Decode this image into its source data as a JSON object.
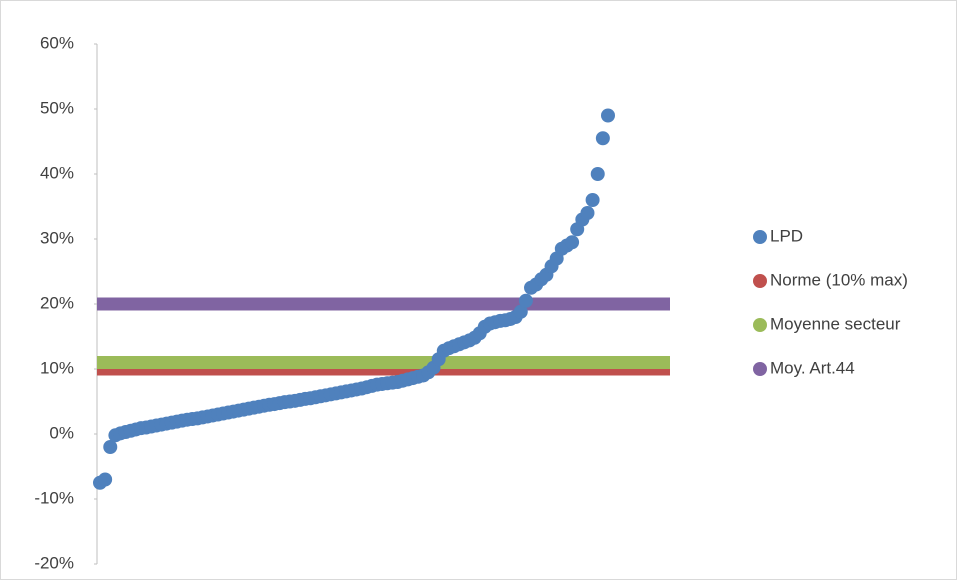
{
  "chart_data": {
    "type": "scatter",
    "ylim": [
      -20,
      60
    ],
    "yticks": [
      {
        "value": -20,
        "label": "-20%"
      },
      {
        "value": -10,
        "label": "-10%"
      },
      {
        "value": 0,
        "label": "0%"
      },
      {
        "value": 10,
        "label": "10%"
      },
      {
        "value": 20,
        "label": "20%"
      },
      {
        "value": 30,
        "label": "30%"
      },
      {
        "value": 40,
        "label": "40%"
      },
      {
        "value": 50,
        "label": "50%"
      },
      {
        "value": 60,
        "label": "60%"
      }
    ],
    "grid": false,
    "legend": "right",
    "series": [
      {
        "name": "LPD",
        "color": "#4f81bd",
        "values": [
          -7.5,
          -7,
          -2,
          -0.2,
          0.1,
          0.3,
          0.5,
          0.7,
          0.9,
          1.0,
          1.15,
          1.3,
          1.45,
          1.6,
          1.75,
          1.9,
          2.05,
          2.2,
          2.3,
          2.4,
          2.55,
          2.7,
          2.85,
          3.0,
          3.15,
          3.3,
          3.45,
          3.6,
          3.75,
          3.9,
          4.05,
          4.2,
          4.35,
          4.5,
          4.6,
          4.75,
          4.9,
          5.0,
          5.1,
          5.25,
          5.4,
          5.5,
          5.65,
          5.8,
          5.95,
          6.1,
          6.25,
          6.4,
          6.55,
          6.7,
          6.85,
          7.0,
          7.2,
          7.4,
          7.6,
          7.7,
          7.8,
          7.9,
          8.0,
          8.2,
          8.4,
          8.6,
          8.8,
          9.0,
          9.5,
          10.2,
          11.5,
          12.8,
          13.2,
          13.5,
          13.8,
          14.1,
          14.4,
          14.8,
          15.5,
          16.5,
          17.0,
          17.2,
          17.4,
          17.5,
          17.7,
          18.0,
          18.8,
          20.5,
          22.5,
          23.0,
          23.8,
          24.5,
          25.8,
          27.0,
          28.5,
          29.0,
          29.5,
          31.5,
          33.0,
          34.0,
          36.0,
          40.0,
          45.5,
          49.0
        ]
      },
      {
        "name": "Norme (10% max)",
        "color": "#c0504d",
        "values": [
          10,
          10
        ]
      },
      {
        "name": "Moyenne secteur",
        "color": "#9bbb59",
        "values": [
          11,
          11
        ]
      },
      {
        "name": "Moy. Art.44",
        "color": "#8064a2",
        "values": [
          20,
          20
        ]
      }
    ]
  }
}
